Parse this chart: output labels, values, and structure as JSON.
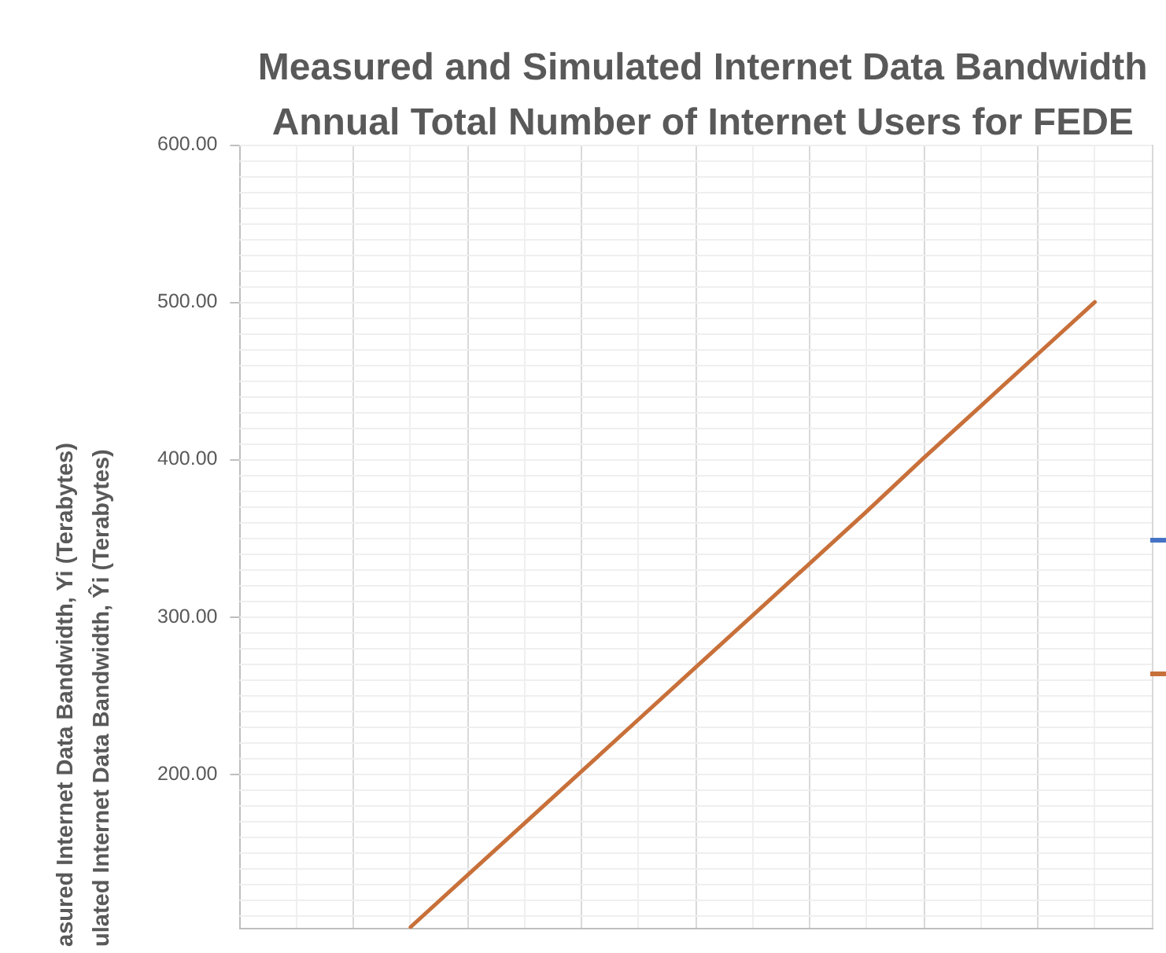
{
  "chart_data": {
    "type": "line",
    "title": "Measured and Simulated Internet Data Bandwidth\nAnnual Total Number of Internet Users for FEDE",
    "ylabel": "asured Internet Data Bandwidth, Yi (Terabytes)\nulated Internet Data Bandwidth, Ŷi (Terabytes)",
    "categories": [
      null,
      null,
      null,
      null,
      null,
      null,
      null,
      null,
      null,
      null,
      null,
      null,
      null,
      null,
      null,
      null,
      null
    ],
    "series": [
      {
        "color": "#c8703a",
        "values": [
          null,
          null,
          null,
          103,
          136,
          169,
          202,
          235,
          268,
          301,
          334,
          367,
          401,
          434,
          467,
          500,
          null
        ]
      }
    ],
    "ylim": [
      102,
      600
    ],
    "yticks": [
      {
        "value": 200,
        "label": "200.00"
      },
      {
        "value": 300,
        "label": "300.00"
      },
      {
        "value": 400,
        "label": "400.00"
      },
      {
        "value": 500,
        "label": "500.00"
      },
      {
        "value": 600,
        "label": "600.00"
      }
    ],
    "grid": true,
    "tick_labels": "y",
    "marker": "none",
    "line_style": "solid"
  }
}
